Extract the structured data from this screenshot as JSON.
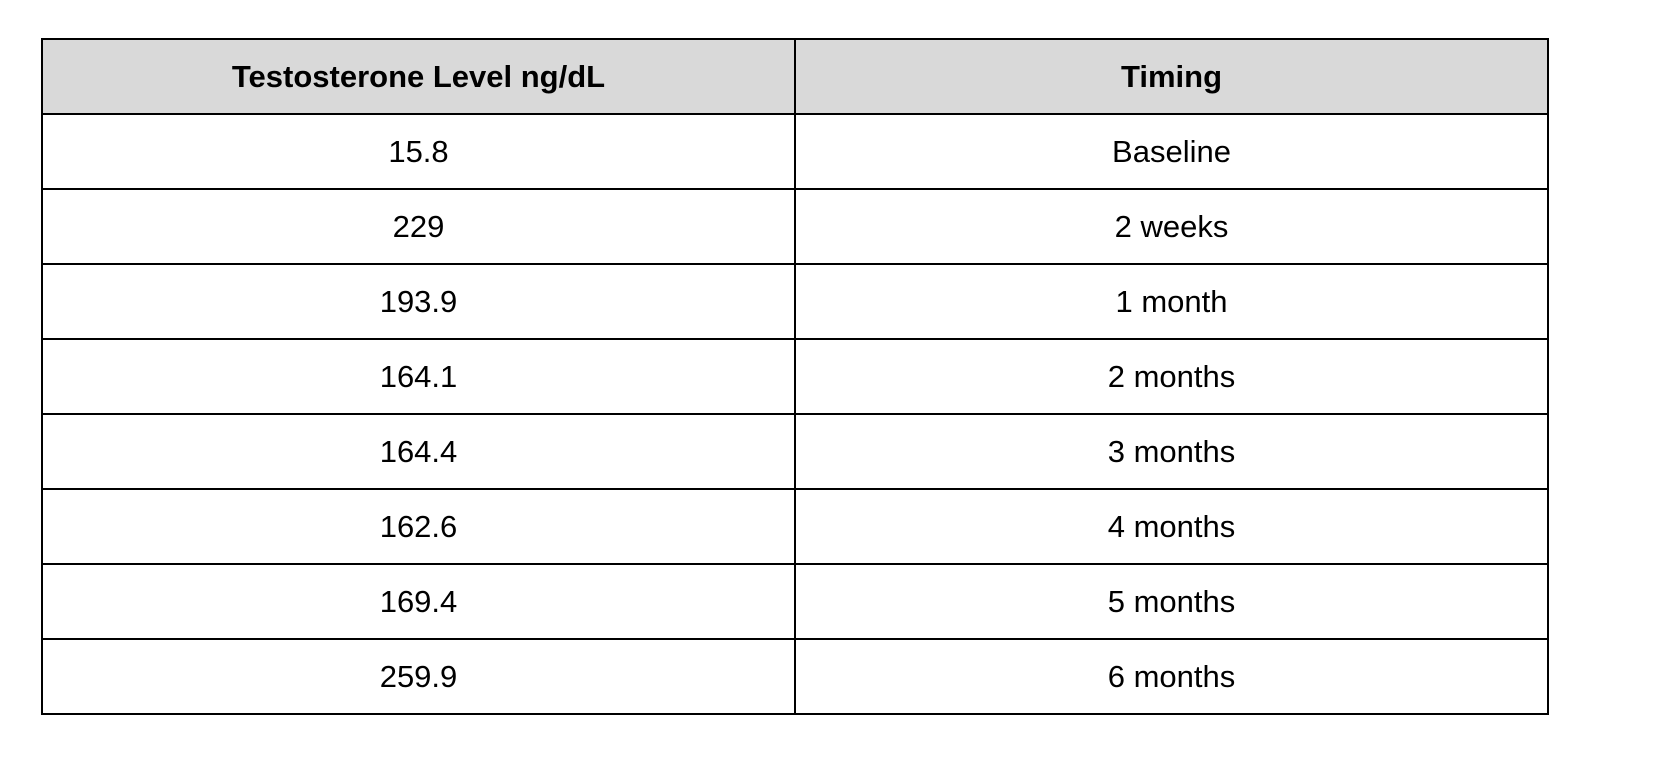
{
  "table": {
    "header": [
      "Testosterone Level ng/dL",
      "Timing"
    ],
    "rows": [
      [
        "15.8",
        "Baseline"
      ],
      [
        "229",
        "2 weeks"
      ],
      [
        "193.9",
        "1 month"
      ],
      [
        "164.1",
        "2 months"
      ],
      [
        "164.4",
        "3 months"
      ],
      [
        "162.6",
        "4 months"
      ],
      [
        "169.4",
        "5 months"
      ],
      [
        "259.9",
        "6 months"
      ]
    ]
  }
}
